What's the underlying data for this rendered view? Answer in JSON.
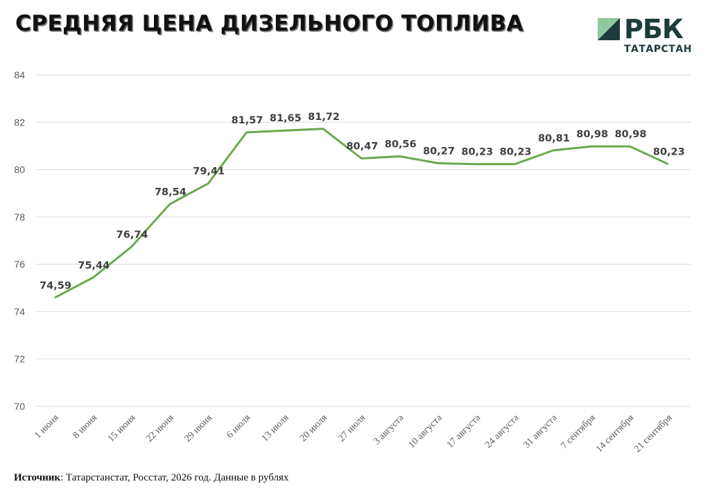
{
  "header": {
    "title": "СРЕДНЯЯ ЦЕНА ДИЗЕЛЬНОГО ТОПЛИВА"
  },
  "logo": {
    "name": "РБК",
    "region": "ТАТАРСТАН",
    "colors": {
      "dark": "#1d3b3b",
      "light": "#8fc9a0"
    }
  },
  "source": {
    "label": "Источник",
    "text": ": Татарстанстат, Росстат, 2026 год. Данные в рублях"
  },
  "chart_data": {
    "type": "line",
    "title": "СРЕДНЯЯ ЦЕНА ДИЗЕЛЬНОГО ТОПЛИВА",
    "xlabel": "",
    "ylabel": "",
    "ylim": [
      70,
      84
    ],
    "yticks": [
      70,
      72,
      74,
      76,
      78,
      80,
      82,
      84
    ],
    "grid": true,
    "legend": "none",
    "line_color": "#6aa84f",
    "categories": [
      "1 июня",
      "8 июня",
      "15 июня",
      "22 июня",
      "29 июня",
      "6 июля",
      "13 июля",
      "20 июля",
      "27 июля",
      "3 августа",
      "10 августа",
      "17 августа",
      "24 августа",
      "31 августа",
      "7 сентября",
      "14 сентября",
      "21 сентября"
    ],
    "values": [
      74.59,
      75.44,
      76.74,
      78.54,
      79.41,
      81.57,
      81.65,
      81.72,
      80.47,
      80.56,
      80.27,
      80.23,
      80.23,
      80.81,
      80.98,
      80.98,
      80.23
    ],
    "data_labels": [
      "74,59",
      "75,44",
      "76,74",
      "78,54",
      "79,41",
      "81,57",
      "81,65",
      "81,72",
      "80,47",
      "80,56",
      "80,27",
      "80,23",
      "80,23",
      "80,81",
      "80,98",
      "80,98",
      "80,23"
    ]
  }
}
